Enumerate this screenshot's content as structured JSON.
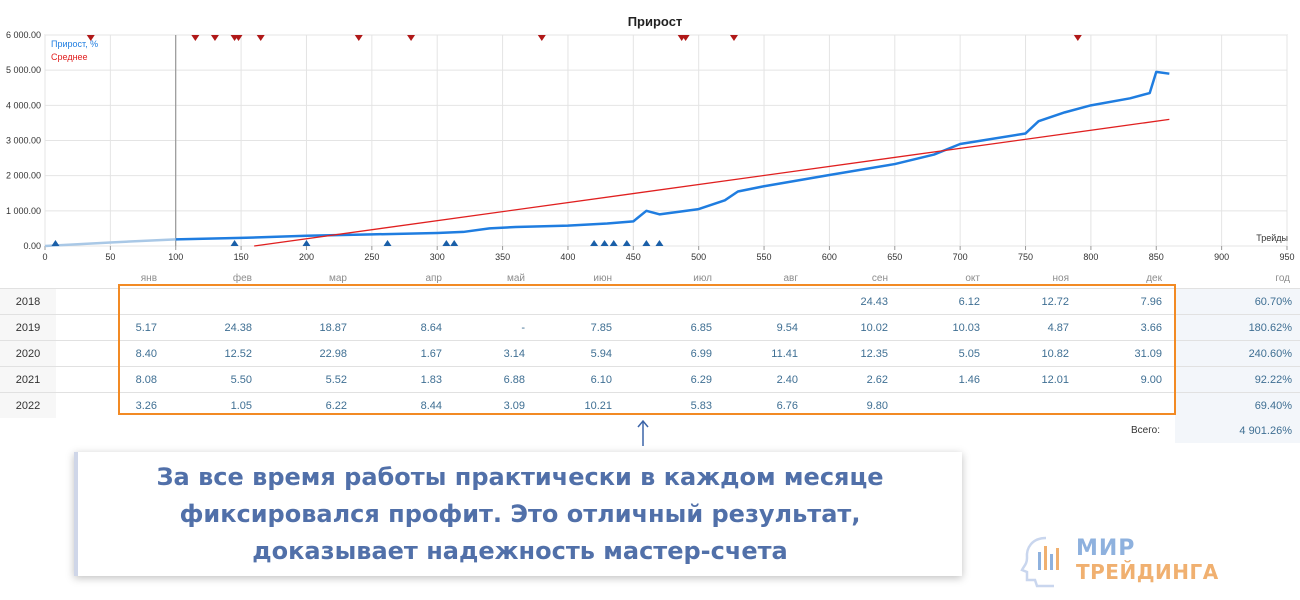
{
  "chart_data": {
    "type": "line",
    "title": "Прирост",
    "xlabel": "Трейды",
    "ylabel": "",
    "xlim": [
      0,
      950
    ],
    "ylim": [
      0,
      6000
    ],
    "x_ticks": [
      "0",
      "50",
      "100",
      "150",
      "200",
      "250",
      "300",
      "350",
      "400",
      "450",
      "500",
      "550",
      "600",
      "650",
      "700",
      "750",
      "800",
      "850",
      "900",
      "950"
    ],
    "y_ticks": [
      "0.00",
      "1 000.00",
      "2 000.00",
      "3 000.00",
      "4 000.00",
      "5 000.00",
      "6 000.00"
    ],
    "legend": [
      "Прирост, %",
      "Среднее"
    ],
    "legend_position": "top-left",
    "grid": true,
    "series": [
      {
        "name": "Прирост, %",
        "color": "#1f7de0",
        "x": [
          0,
          50,
          100,
          150,
          200,
          250,
          300,
          320,
          340,
          360,
          400,
          430,
          450,
          460,
          470,
          480,
          500,
          520,
          530,
          550,
          600,
          650,
          680,
          700,
          750,
          760,
          780,
          800,
          830,
          845,
          850,
          860
        ],
        "y": [
          0,
          100,
          190,
          230,
          290,
          330,
          370,
          400,
          500,
          540,
          580,
          640,
          700,
          1000,
          900,
          950,
          1050,
          1300,
          1550,
          1700,
          2020,
          2330,
          2600,
          2900,
          3200,
          3550,
          3800,
          4000,
          4200,
          4350,
          4950,
          4900
        ]
      },
      {
        "name": "Среднее",
        "color": "#e02020",
        "x": [
          160,
          860
        ],
        "y": [
          0,
          3600
        ]
      }
    ],
    "markers_top_x": [
      35,
      115,
      130,
      145,
      148,
      165,
      240,
      280,
      380,
      487,
      490,
      527,
      790
    ],
    "markers_bottom_x": [
      8,
      145,
      200,
      262,
      307,
      313,
      420,
      428,
      435,
      445,
      460,
      470
    ]
  },
  "stats": {
    "months": [
      "янв",
      "фев",
      "мар",
      "апр",
      "май",
      "июн",
      "июл",
      "авг",
      "сен",
      "окт",
      "ноя",
      "дек"
    ],
    "year_header": "год",
    "rows": [
      {
        "year": "2018",
        "values": [
          "",
          "",
          "",
          "",
          "",
          "",
          "",
          "",
          "24.43",
          "6.12",
          "12.72",
          "7.96"
        ],
        "total": "60.70%"
      },
      {
        "year": "2019",
        "values": [
          "5.17",
          "24.38",
          "18.87",
          "8.64",
          "-",
          "7.85",
          "6.85",
          "9.54",
          "10.02",
          "10.03",
          "4.87",
          "3.66"
        ],
        "total": "180.62%"
      },
      {
        "year": "2020",
        "values": [
          "8.40",
          "12.52",
          "22.98",
          "1.67",
          "3.14",
          "5.94",
          "6.99",
          "11.41",
          "12.35",
          "5.05",
          "10.82",
          "31.09"
        ],
        "total": "240.60%"
      },
      {
        "year": "2021",
        "values": [
          "8.08",
          "5.50",
          "5.52",
          "1.83",
          "6.88",
          "6.10",
          "6.29",
          "2.40",
          "2.62",
          "1.46",
          "12.01",
          "9.00"
        ],
        "total": "92.22%"
      },
      {
        "year": "2022",
        "values": [
          "3.26",
          "1.05",
          "6.22",
          "8.44",
          "3.09",
          "10.21",
          "5.83",
          "6.76",
          "9.80",
          "",
          "",
          ""
        ],
        "total": "69.40%"
      }
    ],
    "total_label": "Всего:",
    "total_value": "4 901.26%"
  },
  "callout": {
    "text": "За все время работы практически в каждом месяце фиксировался профит. Это отличный результат, доказывает надежность мастер-счета"
  },
  "logo": {
    "line1": "МИР",
    "line2": "ТРЕЙДИНГА"
  },
  "colors": {
    "growth": "#1f7de0",
    "average": "#e02020",
    "highlight": "#f28a24",
    "callout_text": "#5170a9"
  }
}
